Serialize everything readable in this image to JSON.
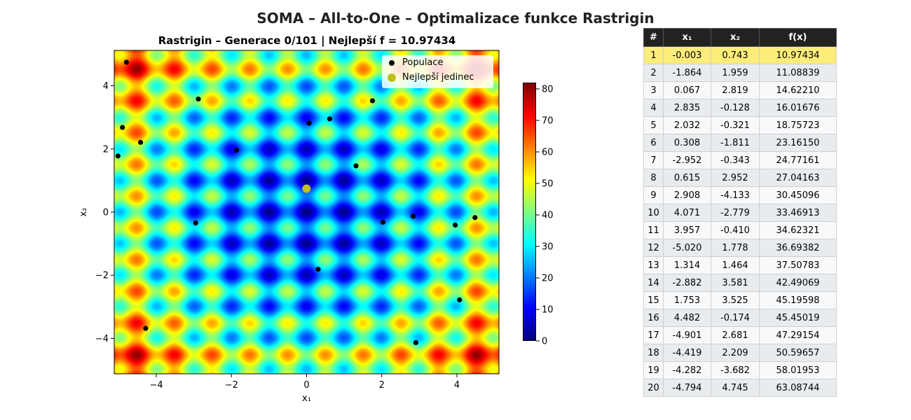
{
  "suptitle": "SOMA – All-to-One – Optimalizace funkce Rastrigin",
  "chart_data": {
    "type": "heatmap",
    "title": "Rastrigin – Generace 0/101 | Nejlepší f = 10.97434",
    "xlabel": "x₁",
    "ylabel": "x₂",
    "xlim": [
      -5.12,
      5.12
    ],
    "ylim": [
      -5.12,
      5.12
    ],
    "xticks": [
      -4,
      -2,
      0,
      2,
      4
    ],
    "yticks": [
      -4,
      -2,
      0,
      2,
      4
    ],
    "colormap": "jet",
    "colorbar": {
      "min": 0,
      "max": 82,
      "ticks": [
        0,
        10,
        20,
        30,
        40,
        50,
        60,
        70,
        80
      ]
    },
    "legend": {
      "position": "top-right",
      "entries": [
        "Populace",
        "Nejlepší jedinec"
      ]
    },
    "population_color": "#000000",
    "best_color": "#bfbf1d",
    "population": [
      {
        "x": -0.003,
        "y": 0.743
      },
      {
        "x": -1.864,
        "y": 1.959
      },
      {
        "x": 0.067,
        "y": 2.819
      },
      {
        "x": 2.835,
        "y": -0.128
      },
      {
        "x": 2.032,
        "y": -0.321
      },
      {
        "x": 0.308,
        "y": -1.811
      },
      {
        "x": -2.952,
        "y": -0.343
      },
      {
        "x": 0.615,
        "y": 2.952
      },
      {
        "x": 2.908,
        "y": -4.133
      },
      {
        "x": 4.071,
        "y": -2.779
      },
      {
        "x": 3.957,
        "y": -0.41
      },
      {
        "x": -5.02,
        "y": 1.778
      },
      {
        "x": 1.314,
        "y": 1.464
      },
      {
        "x": -2.882,
        "y": 3.581
      },
      {
        "x": 1.753,
        "y": 3.525
      },
      {
        "x": 4.482,
        "y": -0.174
      },
      {
        "x": -4.901,
        "y": 2.681
      },
      {
        "x": -4.419,
        "y": 2.209
      },
      {
        "x": -4.282,
        "y": -3.682
      },
      {
        "x": -4.794,
        "y": 4.745
      }
    ],
    "best": {
      "x": -0.003,
      "y": 0.743
    }
  },
  "table": {
    "headers": [
      "#",
      "x₁",
      "x₂",
      "f(x)"
    ],
    "rows": [
      [
        "1",
        "-0.003",
        "0.743",
        "10.97434"
      ],
      [
        "2",
        "-1.864",
        "1.959",
        "11.08839"
      ],
      [
        "3",
        "0.067",
        "2.819",
        "14.62210"
      ],
      [
        "4",
        "2.835",
        "-0.128",
        "16.01676"
      ],
      [
        "5",
        "2.032",
        "-0.321",
        "18.75723"
      ],
      [
        "6",
        "0.308",
        "-1.811",
        "23.16150"
      ],
      [
        "7",
        "-2.952",
        "-0.343",
        "24.77161"
      ],
      [
        "8",
        "0.615",
        "2.952",
        "27.04163"
      ],
      [
        "9",
        "2.908",
        "-4.133",
        "30.45096"
      ],
      [
        "10",
        "4.071",
        "-2.779",
        "33.46913"
      ],
      [
        "11",
        "3.957",
        "-0.410",
        "34.62321"
      ],
      [
        "12",
        "-5.020",
        "1.778",
        "36.69382"
      ],
      [
        "13",
        "1.314",
        "1.464",
        "37.50783"
      ],
      [
        "14",
        "-2.882",
        "3.581",
        "42.49069"
      ],
      [
        "15",
        "1.753",
        "3.525",
        "45.19598"
      ],
      [
        "16",
        "4.482",
        "-0.174",
        "45.45019"
      ],
      [
        "17",
        "-4.901",
        "2.681",
        "47.29154"
      ],
      [
        "18",
        "-4.419",
        "2.209",
        "50.59657"
      ],
      [
        "19",
        "-4.282",
        "-3.682",
        "58.01953"
      ],
      [
        "20",
        "-4.794",
        "4.745",
        "63.08744"
      ]
    ]
  }
}
